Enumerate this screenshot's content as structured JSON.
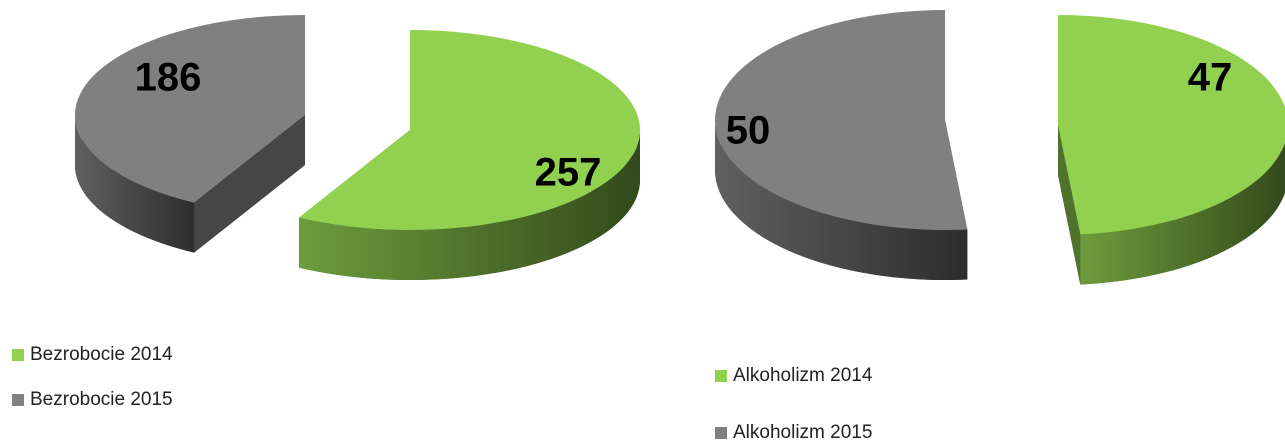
{
  "chart_data": [
    {
      "type": "pie",
      "categories": [
        "Bezrobocie 2014",
        "Bezrobocie 2015"
      ],
      "values": [
        257,
        186
      ],
      "colors": [
        "#92d050",
        "#808080"
      ]
    },
    {
      "type": "pie",
      "categories": [
        "Alkoholizm 2014",
        "Alkoholizm 2015"
      ],
      "values": [
        47,
        50
      ],
      "colors": [
        "#92d050",
        "#808080"
      ]
    }
  ]
}
